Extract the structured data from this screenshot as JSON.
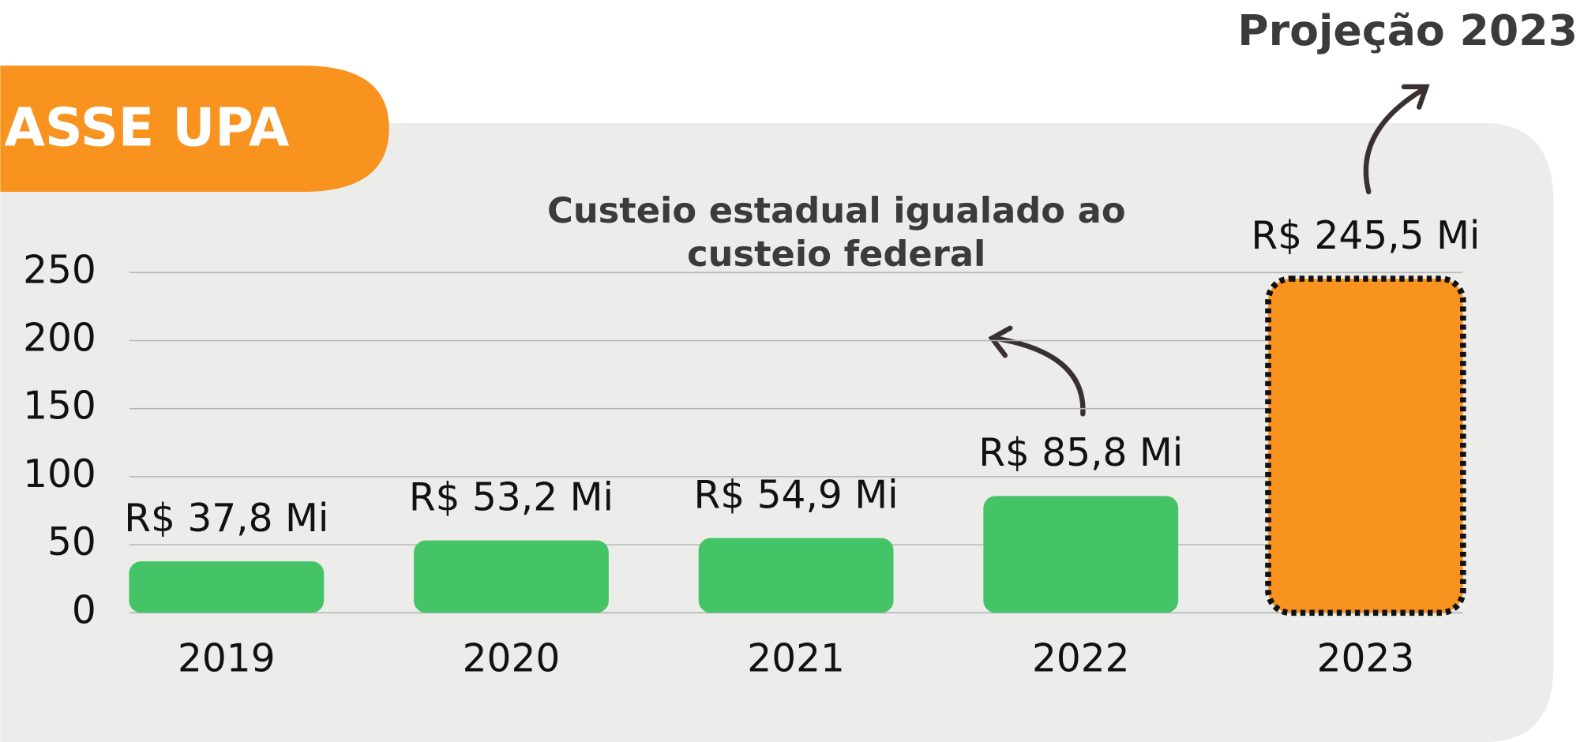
{
  "chart_data": {
    "type": "bar",
    "title": "ASSE UPA",
    "annotations": [
      "Custeio estadual igualado ao",
      "custeio federal",
      "Projeção 2023"
    ],
    "categories": [
      "2019",
      "2020",
      "2021",
      "2022",
      "2023"
    ],
    "values": [
      37.8,
      53.2,
      54.9,
      85.8,
      245.5
    ],
    "value_labels": [
      "R$ 37,8 Mi",
      "R$ 53,2 Mi",
      "R$ 54,9 Mi",
      "R$ 85,8 Mi",
      "R$ 245,5 Mi"
    ],
    "colors": [
      "#44c467",
      "#44c467",
      "#44c467",
      "#44c467",
      "#f7931e"
    ],
    "outlined": [
      false,
      false,
      false,
      false,
      true
    ],
    "ylim": [
      0,
      250
    ],
    "yticks": [
      0,
      50,
      100,
      150,
      200,
      250
    ],
    "grid": true
  }
}
